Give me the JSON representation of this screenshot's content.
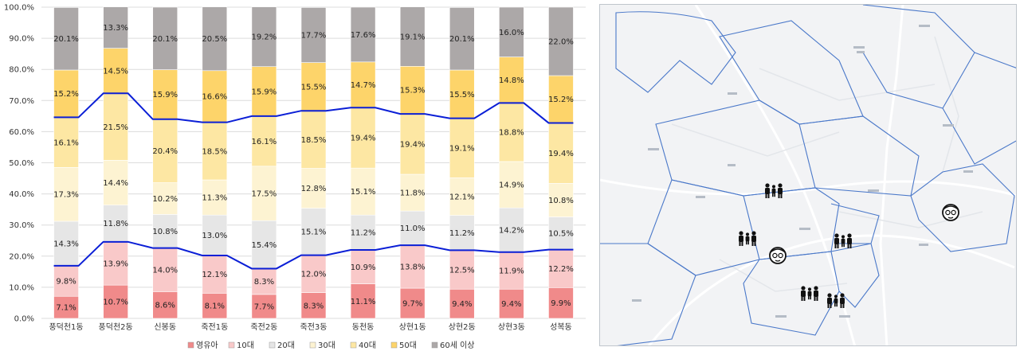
{
  "chart_data": {
    "type": "bar",
    "stacked": true,
    "title": "",
    "xlabel": "",
    "ylabel": "",
    "ylim": [
      0,
      100
    ],
    "y_ticks": [
      "0.0%",
      "10.0%",
      "20.0%",
      "30.0%",
      "40.0%",
      "50.0%",
      "60.0%",
      "70.0%",
      "80.0%",
      "90.0%",
      "100.0%"
    ],
    "categories": [
      "풍덕천1동",
      "풍덕천2동",
      "신봉동",
      "죽전1동",
      "죽전2동",
      "죽전3동",
      "동천동",
      "상현1동",
      "상현2동",
      "상현3동",
      "성복동"
    ],
    "series": [
      {
        "name": "영유아",
        "color": "#f08a8a",
        "values": [
          7.1,
          10.7,
          8.6,
          8.1,
          7.7,
          8.3,
          11.1,
          9.7,
          9.4,
          9.4,
          9.9
        ],
        "labels": [
          "7.1%",
          "10.7%",
          "8.6%",
          "8.1%",
          "7.7%",
          "8.3%",
          "11.1%",
          "9.7%",
          "9.4%",
          "9.4%",
          "9.9%"
        ]
      },
      {
        "name": "10대",
        "color": "#f9c9c9",
        "values": [
          9.8,
          13.9,
          14.0,
          12.1,
          8.3,
          12.0,
          10.9,
          13.8,
          12.5,
          11.9,
          12.2
        ],
        "labels": [
          "9.8%",
          "13.9%",
          "14.0%",
          "12.1%",
          "8.3%",
          "12.0%",
          "10.9%",
          "13.8%",
          "12.5%",
          "11.9%",
          "12.2%"
        ]
      },
      {
        "name": "20대",
        "color": "#e6e6e6",
        "values": [
          14.3,
          11.8,
          10.8,
          13.0,
          15.4,
          15.1,
          11.2,
          11.0,
          11.2,
          14.2,
          10.5
        ],
        "labels": [
          "14.3%",
          "11.8%",
          "10.8%",
          "13.0%",
          "15.4%",
          "15.1%",
          "11.2%",
          "11.0%",
          "11.2%",
          "14.2%",
          "10.5%"
        ]
      },
      {
        "name": "30대",
        "color": "#fdf3d2",
        "values": [
          17.3,
          14.4,
          10.2,
          11.3,
          17.5,
          12.8,
          15.1,
          11.8,
          12.1,
          14.9,
          10.8
        ],
        "labels": [
          "17.3%",
          "14.4%",
          "10.2%",
          "11.3%",
          "17.5%",
          "12.8%",
          "15.1%",
          "11.8%",
          "12.1%",
          "14.9%",
          "10.8%"
        ]
      },
      {
        "name": "40대",
        "color": "#fde7a3",
        "values": [
          16.1,
          21.5,
          20.4,
          18.5,
          16.1,
          18.5,
          19.4,
          19.4,
          19.1,
          18.8,
          19.4
        ],
        "labels": [
          "16.1%",
          "21.5%",
          "20.4%",
          "18.5%",
          "16.1%",
          "18.5%",
          "19.4%",
          "19.4%",
          "19.1%",
          "18.8%",
          "19.4%"
        ]
      },
      {
        "name": "50대",
        "color": "#fdd46a",
        "values": [
          15.2,
          14.5,
          15.9,
          16.6,
          15.9,
          15.5,
          14.7,
          15.3,
          15.5,
          14.8,
          15.2
        ],
        "labels": [
          "15.2%",
          "14.5%",
          "15.9%",
          "16.6%",
          "15.9%",
          "15.5%",
          "14.7%",
          "15.3%",
          "15.5%",
          "14.8%",
          "15.2%"
        ]
      },
      {
        "name": "60세 이상",
        "color": "#aca8a8",
        "values": [
          20.1,
          13.3,
          20.1,
          20.5,
          19.2,
          17.7,
          17.6,
          19.1,
          20.1,
          16.0,
          22.0
        ],
        "labels": [
          "20.1%",
          "13.3%",
          "20.1%",
          "20.5%",
          "19.2%",
          "17.7%",
          "17.6%",
          "19.1%",
          "20.1%",
          "16.0%",
          "22.0%"
        ]
      }
    ],
    "legend": [
      "영유아",
      "10대",
      "20대",
      "30대",
      "40대",
      "50대",
      "60세 이상"
    ],
    "legend_position": "bottom",
    "line_color": "#0b1fd6",
    "lines": [
      {
        "name": "boundary-lower",
        "boundary_after_series": 1
      },
      {
        "name": "boundary-upper",
        "boundary_after_series": 4
      }
    ]
  },
  "map": {
    "background": "#f2f3f5",
    "icons": [
      {
        "type": "family-icon"
      },
      {
        "type": "family-icon"
      },
      {
        "type": "family-icon"
      },
      {
        "type": "family-icon"
      },
      {
        "type": "family-icon"
      },
      {
        "type": "elderly-icon"
      },
      {
        "type": "elderly-icon"
      }
    ]
  }
}
